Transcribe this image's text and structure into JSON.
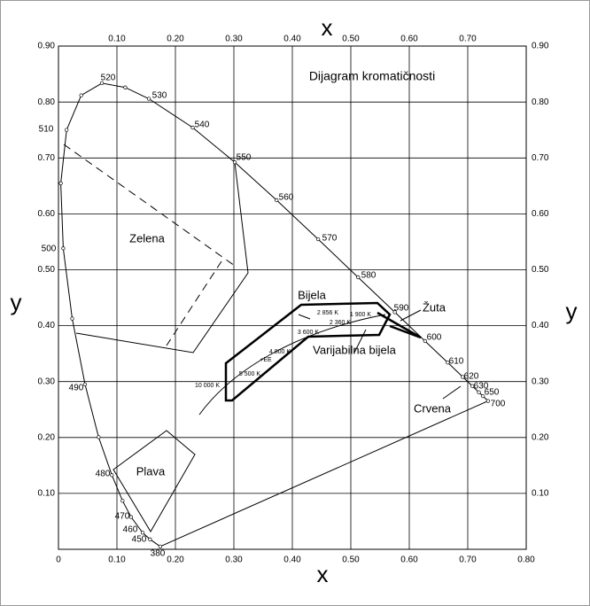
{
  "title": "Dijagram kromatičnosti",
  "axes": {
    "x_label_top": "x",
    "x_label_bottom": "x",
    "y_label_left": "y",
    "y_label_right": "y",
    "x_ticks_top": [
      {
        "value": 0.1,
        "label": "0.10"
      },
      {
        "value": 0.2,
        "label": "0.20"
      },
      {
        "value": 0.3,
        "label": "0.30"
      },
      {
        "value": 0.4,
        "label": "0.40"
      },
      {
        "value": 0.5,
        "label": "0.50"
      },
      {
        "value": 0.6,
        "label": "0.60"
      },
      {
        "value": 0.7,
        "label": "0.70"
      }
    ],
    "x_ticks_bottom": [
      0,
      {
        "value": 0.1,
        "label": "0.10"
      },
      {
        "value": 0.2,
        "label": "0.20"
      },
      {
        "value": 0.3,
        "label": "0.30"
      },
      {
        "value": 0.4,
        "label": "0.40"
      },
      {
        "value": 0.5,
        "label": "0.50"
      },
      {
        "value": 0.6,
        "label": "0.60"
      },
      {
        "value": 0.7,
        "label": "0.70"
      },
      {
        "value": 0.8,
        "label": "0.80"
      }
    ],
    "y_ticks_left": [
      {
        "value": 0.9,
        "label": "0.90"
      },
      {
        "value": 0.8,
        "label": "0.80"
      },
      {
        "value": 0.7,
        "label": "0.70"
      },
      {
        "value": 0.6,
        "label": "0.60"
      },
      {
        "value": 0.5,
        "label": "0.50"
      },
      {
        "value": 0.4,
        "label": "0.40"
      },
      {
        "value": 0.3,
        "label": "0.30"
      },
      {
        "value": 0.2,
        "label": "0.20"
      },
      {
        "value": 0.1,
        "label": "0.10"
      }
    ],
    "y_ticks_right": [
      {
        "value": 0.9,
        "label": "0.90"
      },
      {
        "value": 0.8,
        "label": "0.80"
      },
      {
        "value": 0.7,
        "label": "0.70"
      },
      {
        "value": 0.6,
        "label": "0.60"
      },
      {
        "value": 0.5,
        "label": "0.50"
      },
      {
        "value": 0.4,
        "label": "0.40"
      },
      {
        "value": 0.3,
        "label": "0.30"
      },
      {
        "value": 0.2,
        "label": "0.20"
      },
      {
        "value": 0.1,
        "label": "0.10"
      }
    ]
  },
  "wavelengths": [
    520,
    530,
    540,
    550,
    560,
    570,
    580,
    590,
    600,
    610,
    620,
    630,
    650,
    700,
    510,
    500,
    490,
    480,
    470,
    460,
    450,
    380
  ],
  "regions": [
    "Zelena",
    "Plava",
    "Bijela",
    "Varijabilna bijela",
    "Žuta",
    "Crvena"
  ],
  "temperatures": [
    "2 856 K",
    "1 900 K",
    "2 360 K",
    "3 600 K",
    "4 800 K",
    "5 500 K",
    "10 000 K",
    "+EE"
  ]
}
